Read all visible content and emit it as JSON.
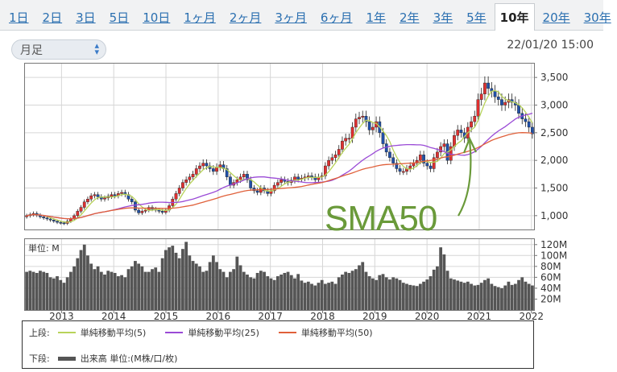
{
  "tabs": [
    {
      "label": "1日",
      "active": false
    },
    {
      "label": "2日",
      "active": false
    },
    {
      "label": "3日",
      "active": false
    },
    {
      "label": "5日",
      "active": false
    },
    {
      "label": "10日",
      "active": false
    },
    {
      "label": "1ヶ月",
      "active": false
    },
    {
      "label": "2ヶ月",
      "active": false
    },
    {
      "label": "3ヶ月",
      "active": false
    },
    {
      "label": "6ヶ月",
      "active": false
    },
    {
      "label": "1年",
      "active": false
    },
    {
      "label": "2年",
      "active": false
    },
    {
      "label": "3年",
      "active": false
    },
    {
      "label": "5年",
      "active": false
    },
    {
      "label": "10年",
      "active": true
    },
    {
      "label": "20年",
      "active": false
    },
    {
      "label": "30年",
      "active": false
    }
  ],
  "timeframe_select": {
    "value": "月足"
  },
  "timestamp": "22/01/20 15:00",
  "volume_unit_label": "単位: M",
  "annotation": "SMA50",
  "legend": {
    "upper_label": "上段:",
    "lower_label": "下段:",
    "items": [
      {
        "name": "単純移動平均(5)",
        "color": "#b8d35a"
      },
      {
        "name": "単純移動平均(25)",
        "color": "#9a4ad6"
      },
      {
        "name": "単純移動平均(50)",
        "color": "#e0603a"
      }
    ],
    "volume_item": "出来高 単位:(M株/口/枚)"
  },
  "colors": {
    "up": "#e03030",
    "down": "#2050a8",
    "volume": "#555555",
    "annotation": "#6a9a3a"
  },
  "chart_data": [
    {
      "type": "candlestick",
      "title": "",
      "x_tick_labels": [
        "2013",
        "2014",
        "2015",
        "2016",
        "2017",
        "2018",
        "2019",
        "2020",
        "2021",
        "2022"
      ],
      "y_tick_labels": [
        "1,000",
        "1,500",
        "2,000",
        "2,500",
        "3,000",
        "3,500"
      ],
      "ylim": [
        750,
        3750
      ],
      "grid": true,
      "time_start": 2012.3,
      "time_end": 2022.05,
      "monthly_close": [
        1000,
        1020,
        1040,
        1010,
        980,
        960,
        940,
        920,
        900,
        880,
        870,
        860,
        900,
        940,
        1000,
        1080,
        1150,
        1250,
        1300,
        1360,
        1380,
        1340,
        1300,
        1320,
        1350,
        1380,
        1360,
        1400,
        1420,
        1380,
        1300,
        1250,
        1100,
        1050,
        1080,
        1100,
        1150,
        1120,
        1100,
        1080,
        1060,
        1100,
        1180,
        1300,
        1400,
        1500,
        1600,
        1650,
        1700,
        1750,
        1850,
        1900,
        1950,
        1900,
        1850,
        1800,
        1880,
        1920,
        1850,
        1700,
        1550,
        1600,
        1650,
        1700,
        1750,
        1650,
        1500,
        1450,
        1420,
        1500,
        1450,
        1400,
        1450,
        1550,
        1600,
        1650,
        1620,
        1600,
        1640,
        1700,
        1660,
        1680,
        1700,
        1720,
        1700,
        1650,
        1700,
        1720,
        1900,
        2000,
        2050,
        2100,
        2200,
        2350,
        2400,
        2400,
        2600,
        2750,
        2780,
        2800,
        2700,
        2550,
        2600,
        2700,
        2500,
        2300,
        2150,
        2050,
        1950,
        1850,
        1800,
        1800,
        1850,
        1900,
        1950,
        2000,
        2100,
        1950,
        1900,
        1850,
        2050,
        2150,
        2250,
        2300,
        2000,
        2250,
        2450,
        2550,
        2500,
        2400,
        2600,
        2700,
        2800,
        3100,
        3200,
        3400,
        3300,
        3250,
        3150,
        3100,
        3000,
        3050,
        3100,
        3050,
        3000,
        2850,
        2750,
        2700,
        2600,
        2480
      ],
      "series": [
        {
          "name": "単純移動平均(5)",
          "period": 5
        },
        {
          "name": "単純移動平均(25)",
          "period": 25
        },
        {
          "name": "単純移動平均(50)",
          "period": 50
        }
      ]
    },
    {
      "type": "bar",
      "title": "",
      "unit": "M",
      "y_tick_labels": [
        "20M",
        "40M",
        "60M",
        "80M",
        "100M",
        "120M"
      ],
      "ylim": [
        0,
        130
      ],
      "monthly_volume": [
        70,
        72,
        70,
        68,
        72,
        70,
        68,
        60,
        58,
        62,
        55,
        50,
        60,
        70,
        80,
        95,
        110,
        120,
        100,
        85,
        75,
        80,
        70,
        65,
        72,
        70,
        68,
        62,
        64,
        60,
        75,
        80,
        90,
        85,
        80,
        70,
        70,
        75,
        78,
        70,
        95,
        110,
        115,
        118,
        105,
        95,
        112,
        125,
        100,
        90,
        85,
        80,
        70,
        72,
        88,
        100,
        88,
        75,
        70,
        60,
        70,
        75,
        98,
        82,
        70,
        65,
        60,
        58,
        68,
        72,
        70,
        62,
        58,
        55,
        62,
        65,
        68,
        70,
        64,
        58,
        66,
        54,
        50,
        52,
        48,
        45,
        50,
        55,
        48,
        50,
        52,
        48,
        60,
        65,
        70,
        68,
        72,
        75,
        82,
        88,
        70,
        62,
        58,
        55,
        64,
        66,
        60,
        56,
        60,
        58,
        55,
        50,
        48,
        46,
        45,
        44,
        48,
        52,
        56,
        62,
        74,
        80,
        115,
        102,
        72,
        58,
        56,
        54,
        52,
        50,
        52,
        48,
        45,
        46,
        50,
        55,
        58,
        48,
        44,
        42,
        40,
        45,
        52,
        46,
        48,
        55,
        60,
        52,
        48,
        45
      ],
      "grid": true
    }
  ]
}
